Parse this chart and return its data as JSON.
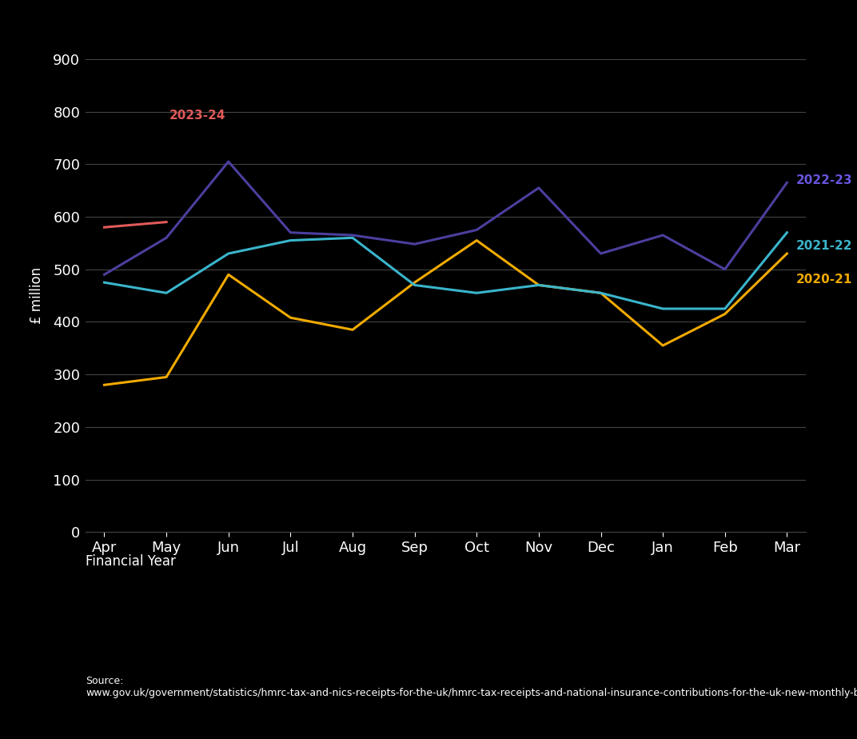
{
  "months": [
    "Apr",
    "May",
    "Jun",
    "Jul",
    "Aug",
    "Sep",
    "Oct",
    "Nov",
    "Dec",
    "Jan",
    "Feb",
    "Mar"
  ],
  "series": {
    "2023-24": {
      "values": [
        580,
        590,
        null,
        null,
        null,
        null,
        null,
        null,
        null,
        null,
        null,
        null
      ],
      "color": "#e05a5a",
      "label_color": "#e05a5a"
    },
    "2022-23": {
      "values": [
        490,
        560,
        705,
        570,
        565,
        548,
        575,
        655,
        530,
        565,
        500,
        665
      ],
      "color": "#4b3f9e",
      "label_color": "#6655dd"
    },
    "2021-22": {
      "values": [
        475,
        455,
        530,
        555,
        560,
        470,
        455,
        470,
        455,
        425,
        425,
        570
      ],
      "color": "#3ab5cc",
      "label_color": "#3ab5cc"
    },
    "2020-21": {
      "values": [
        280,
        295,
        490,
        408,
        385,
        475,
        555,
        470,
        455,
        355,
        415,
        530
      ],
      "color": "#f0aa00",
      "label_color": "#f0aa00"
    }
  },
  "ylabel": "£ million",
  "xlabel": "Financial Year",
  "ylim": [
    0,
    900
  ],
  "yticks": [
    0,
    100,
    200,
    300,
    400,
    500,
    600,
    700,
    800,
    900
  ],
  "background_color": "#000000",
  "text_color": "#ffffff",
  "grid_color": "#444444",
  "source_text": "Source:\nwww.gov.uk/government/statistics/hmrc-tax-and-nics-receipts-for-the-uk/hmrc-tax-receipts-and-national-insurance-contributions-for-the-uk-new-monthly-bulletin",
  "line_width": 2.2,
  "label_fontsize": 11,
  "tick_fontsize": 13,
  "axis_label_fontsize": 12,
  "source_fontsize": 9,
  "fin_year_fontsize": 12
}
